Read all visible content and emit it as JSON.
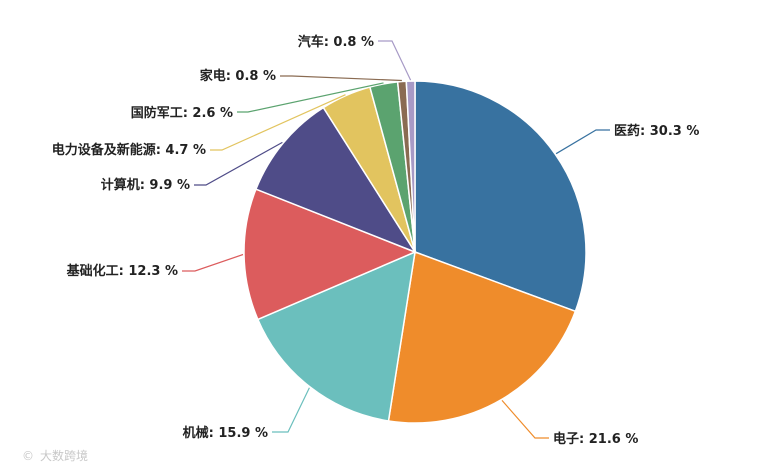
{
  "chart_data": {
    "type": "pie",
    "title": "",
    "start_angle_deg": 90,
    "direction": "clockwise",
    "slices": [
      {
        "name": "医药",
        "value": 30.3,
        "label": "医药: 30.3 %",
        "color": "#3872a0"
      },
      {
        "name": "电子",
        "value": 21.6,
        "label": "电子: 21.6 %",
        "color": "#ef8c2b"
      },
      {
        "name": "机械",
        "value": 15.9,
        "label": "机械: 15.9 %",
        "color": "#6bbfbd"
      },
      {
        "name": "基础化工",
        "value": 12.3,
        "label": "基础化工: 12.3 %",
        "color": "#dc5c5d"
      },
      {
        "name": "计算机",
        "value": 9.9,
        "label": "计算机: 9.9 %",
        "color": "#4f4c88"
      },
      {
        "name": "电力设备及新能源",
        "value": 4.7,
        "label": "电力设备及新能源: 4.7 %",
        "color": "#e2c45f"
      },
      {
        "name": "国防军工",
        "value": 2.6,
        "label": "国防军工: 2.6 %",
        "color": "#5ba36f"
      },
      {
        "name": "家电",
        "value": 0.8,
        "label": "家电: 0.8 %",
        "color": "#8a6b52"
      },
      {
        "name": "汽车",
        "value": 0.8,
        "label": "汽车: 0.8 %",
        "color": "#a79ac6"
      }
    ],
    "legend": "none"
  },
  "watermark": {
    "text": "大数跨境"
  }
}
